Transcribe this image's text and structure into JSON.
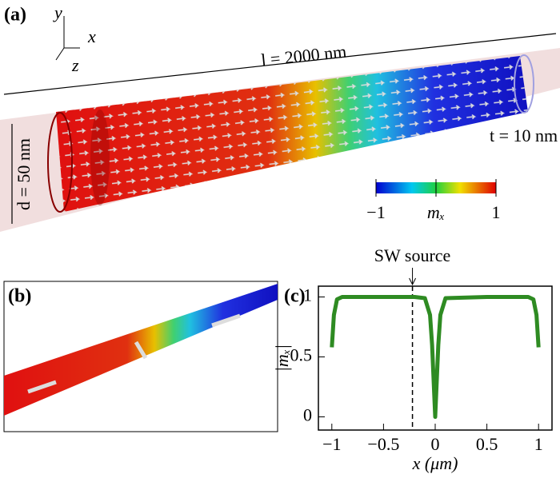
{
  "panel_a": {
    "label": "(a)",
    "axis_y": "y",
    "axis_x": "x",
    "axis_z": "z",
    "length": "l = 2000 nm",
    "diameter": "d = 50 nm",
    "thickness": "t = 10 nm",
    "colorbar": {
      "label": "mₓ",
      "ticks": [
        {
          "value": -1,
          "label": "−1"
        },
        {
          "value": 1,
          "label": "1"
        }
      ]
    }
  },
  "panel_b": {
    "label": "(b)"
  },
  "chart_data": {
    "type": "line",
    "panel_label": "(c)",
    "xlabel": "x (μm)",
    "ylabel": "|mₓ|",
    "annotation": "SW source",
    "source_x": -0.22,
    "xlim": [
      -1.13,
      1.13
    ],
    "ylim": [
      -0.11,
      1.09
    ],
    "xticks": [
      {
        "value": -1,
        "label": "−1"
      },
      {
        "value": -0.5,
        "label": "−0.5"
      },
      0,
      0.5,
      1
    ],
    "yticks": [
      0,
      0.5,
      1
    ],
    "x": [
      -1,
      -0.98,
      -0.95,
      -0.9,
      -0.5,
      -0.2,
      -0.1,
      -0.05,
      -0.03,
      -0.01,
      0,
      0.01,
      0.03,
      0.05,
      0.1,
      0.5,
      0.9,
      0.95,
      0.98,
      1
    ],
    "series": [
      {
        "color": "#2e8b22",
        "values": [
          0.58,
          0.85,
          0.98,
          1,
          1,
          1,
          0.99,
          0.85,
          0.6,
          0.2,
          0,
          0.2,
          0.6,
          0.85,
          0.99,
          1,
          1,
          0.98,
          0.85,
          0.58
        ]
      }
    ]
  }
}
